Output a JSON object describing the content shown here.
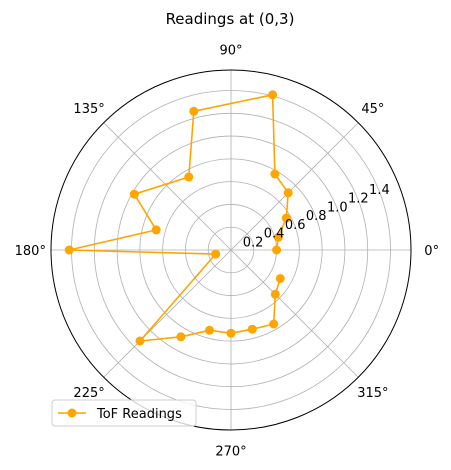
{
  "chart_data": {
    "type": "line",
    "projection": "polar",
    "title": "Readings at (0,3)",
    "angle_ticks": [
      {
        "deg": 0,
        "label": "0°"
      },
      {
        "deg": 45,
        "label": "45°"
      },
      {
        "deg": 90,
        "label": "90°"
      },
      {
        "deg": 135,
        "label": "135°"
      },
      {
        "deg": 180,
        "label": "180°"
      },
      {
        "deg": 225,
        "label": "225°"
      },
      {
        "deg": 270,
        "label": "270°"
      },
      {
        "deg": 315,
        "label": "315°"
      }
    ],
    "radial_ticks": [
      {
        "value": 0.2,
        "label": "0.2"
      },
      {
        "value": 0.4,
        "label": "0.4"
      },
      {
        "value": 0.6,
        "label": "0.6"
      },
      {
        "value": 0.8,
        "label": "0.8"
      },
      {
        "value": 1.0,
        "label": "1.0"
      },
      {
        "value": 1.2,
        "label": "1.2"
      },
      {
        "value": 1.4,
        "label": "1.4"
      }
    ],
    "rlim": [
      0,
      1.58
    ],
    "radial_label_angle_deg": 22.5,
    "grid": true,
    "legend_position": "lower-left",
    "series": [
      {
        "name": "ToF Readings",
        "color": "#ffa500",
        "marker": "circle",
        "points": [
          {
            "theta": 0,
            "r": 0.4
          },
          {
            "theta": 15,
            "r": 0.43
          },
          {
            "theta": 30,
            "r": 0.56
          },
          {
            "theta": 45,
            "r": 0.71
          },
          {
            "theta": 60,
            "r": 0.77
          },
          {
            "theta": 75,
            "r": 1.41
          },
          {
            "theta": 105,
            "r": 1.26
          },
          {
            "theta": 120,
            "r": 0.74
          },
          {
            "theta": 150,
            "r": 0.98
          },
          {
            "theta": 165,
            "r": 0.68
          },
          {
            "theta": 180,
            "r": 1.42
          },
          {
            "theta": 195,
            "r": 0.14
          },
          {
            "theta": 225,
            "r": 1.13
          },
          {
            "theta": 240,
            "r": 0.88
          },
          {
            "theta": 255,
            "r": 0.73
          },
          {
            "theta": 270,
            "r": 0.73
          },
          {
            "theta": 285,
            "r": 0.72
          },
          {
            "theta": 300,
            "r": 0.75
          },
          {
            "theta": 315,
            "r": 0.55
          },
          {
            "theta": 330,
            "r": 0.5
          }
        ]
      }
    ]
  }
}
